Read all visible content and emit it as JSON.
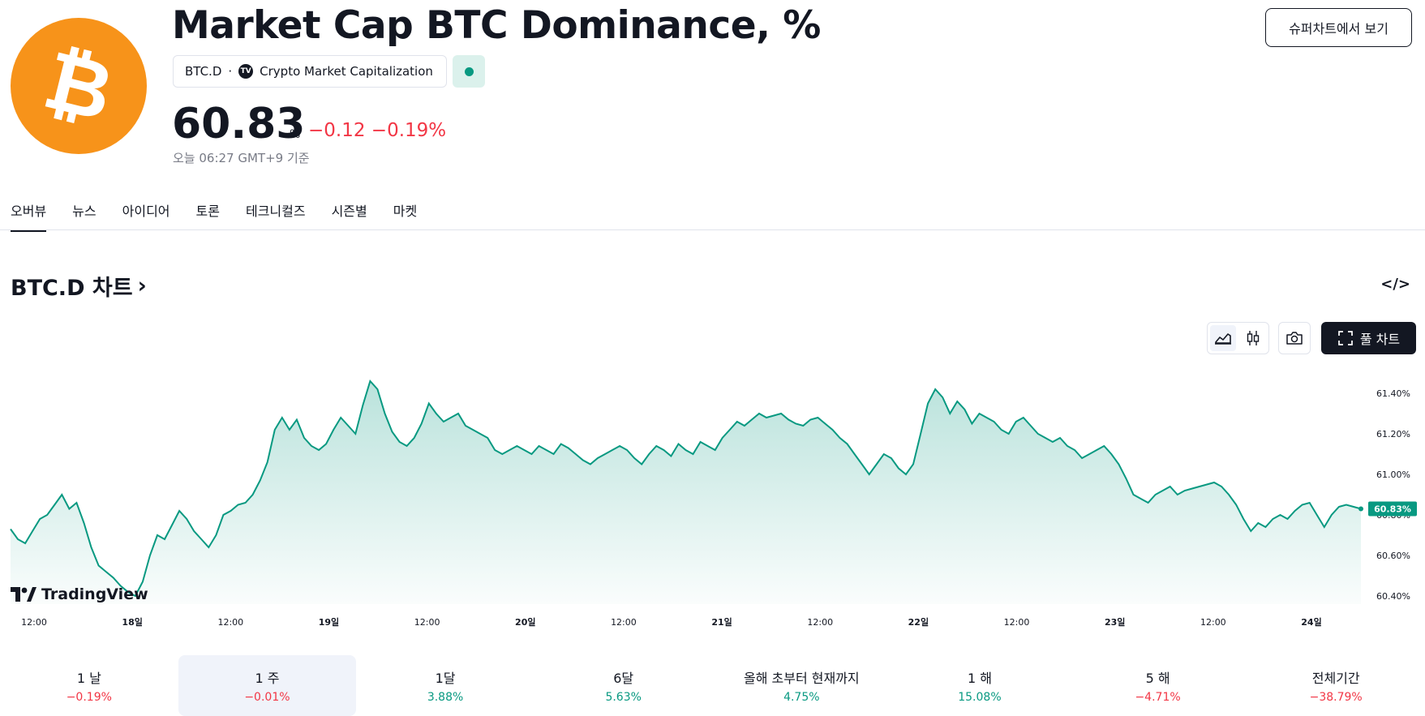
{
  "header": {
    "title": "Market Cap BTC Dominance, %",
    "symbol": "BTC.D",
    "separator": "·",
    "source_badge": "TV",
    "source": "Crypto Market Capitalization",
    "price": "60.83",
    "unit": "%",
    "change": "−0.12",
    "change_pct": "−0.19%",
    "as_of": "오늘 06:27 GMT+9 기준",
    "supercharts_button": "슈퍼차트에서 보기",
    "logo_icon": "bitcoin-logo-icon",
    "accent_color": "#f7931a",
    "status_color": "#089981"
  },
  "tabs": [
    {
      "label": "오버뷰",
      "active": true
    },
    {
      "label": "뉴스",
      "active": false
    },
    {
      "label": "아이디어",
      "active": false
    },
    {
      "label": "토론",
      "active": false
    },
    {
      "label": "테크니컬즈",
      "active": false
    },
    {
      "label": "시즌별",
      "active": false
    },
    {
      "label": "마켓",
      "active": false
    }
  ],
  "chart_section": {
    "heading": "BTC.D 차트",
    "chevron": "›",
    "embed_icon": "</>",
    "full_chart_button": "풀 차트",
    "watermark": "TradingView"
  },
  "chart_data": {
    "type": "area",
    "line_color": "#089981",
    "y_ticks": [
      "61.40%",
      "61.20%",
      "61.00%",
      "60.80%",
      "60.60%",
      "60.40%"
    ],
    "y_tick_values": [
      61.4,
      61.2,
      61.0,
      60.8,
      60.6,
      60.4
    ],
    "ylim": [
      60.36,
      61.52
    ],
    "x_ticks": [
      "12:00",
      "18일",
      "12:00",
      "19일",
      "12:00",
      "20일",
      "12:00",
      "21일",
      "12:00",
      "22일",
      "12:00",
      "23일",
      "12:00",
      "24일"
    ],
    "last_value_label": "60.83%",
    "last_value": 60.83,
    "values": [
      60.73,
      60.68,
      60.66,
      60.72,
      60.78,
      60.8,
      60.85,
      60.9,
      60.83,
      60.86,
      60.76,
      60.64,
      60.55,
      60.52,
      60.49,
      60.45,
      60.42,
      60.4,
      60.47,
      60.6,
      60.7,
      60.68,
      60.75,
      60.82,
      60.78,
      60.72,
      60.68,
      60.64,
      60.7,
      60.8,
      60.82,
      60.85,
      60.86,
      60.9,
      60.97,
      61.06,
      61.22,
      61.28,
      61.22,
      61.27,
      61.18,
      61.14,
      61.12,
      61.15,
      61.22,
      61.28,
      61.24,
      61.2,
      61.34,
      61.46,
      61.42,
      61.3,
      61.21,
      61.16,
      61.14,
      61.18,
      61.25,
      61.35,
      61.3,
      61.26,
      61.28,
      61.3,
      61.24,
      61.22,
      61.2,
      61.18,
      61.12,
      61.1,
      61.12,
      61.14,
      61.12,
      61.1,
      61.14,
      61.12,
      61.1,
      61.15,
      61.13,
      61.1,
      61.07,
      61.05,
      61.08,
      61.1,
      61.12,
      61.14,
      61.12,
      61.08,
      61.05,
      61.1,
      61.14,
      61.12,
      61.09,
      61.15,
      61.12,
      61.1,
      61.16,
      61.14,
      61.12,
      61.18,
      61.22,
      61.26,
      61.24,
      61.27,
      61.3,
      61.28,
      61.29,
      61.3,
      61.27,
      61.25,
      61.24,
      61.27,
      61.28,
      61.25,
      61.22,
      61.18,
      61.15,
      61.1,
      61.05,
      61.0,
      61.05,
      61.1,
      61.08,
      61.03,
      61.0,
      61.05,
      61.2,
      61.35,
      61.42,
      61.38,
      61.3,
      61.36,
      61.32,
      61.25,
      61.3,
      61.28,
      61.26,
      61.22,
      61.2,
      61.26,
      61.28,
      61.24,
      61.2,
      61.18,
      61.16,
      61.18,
      61.14,
      61.12,
      61.08,
      61.1,
      61.12,
      61.14,
      61.1,
      61.05,
      60.98,
      60.9,
      60.88,
      60.86,
      60.9,
      60.92,
      60.94,
      60.9,
      60.92,
      60.93,
      60.94,
      60.95,
      60.96,
      60.94,
      60.9,
      60.85,
      60.78,
      60.72,
      60.76,
      60.74,
      60.78,
      60.8,
      60.78,
      60.82,
      60.85,
      60.86,
      60.8,
      60.74,
      60.8,
      60.84,
      60.85,
      60.84,
      60.83
    ],
    "xlabel": "",
    "ylabel": ""
  },
  "periods": [
    {
      "label": "1 날",
      "value": "−0.19%",
      "dir": "neg",
      "selected": false
    },
    {
      "label": "1 주",
      "value": "−0.01%",
      "dir": "neg",
      "selected": true
    },
    {
      "label": "1달",
      "value": "3.88%",
      "dir": "pos",
      "selected": false
    },
    {
      "label": "6달",
      "value": "5.63%",
      "dir": "pos",
      "selected": false
    },
    {
      "label": "올해 초부터 현재까지",
      "value": "4.75%",
      "dir": "pos",
      "selected": false
    },
    {
      "label": "1 해",
      "value": "15.08%",
      "dir": "pos",
      "selected": false
    },
    {
      "label": "5 해",
      "value": "−4.71%",
      "dir": "neg",
      "selected": false
    },
    {
      "label": "전체기간",
      "value": "−38.79%",
      "dir": "neg",
      "selected": false
    }
  ]
}
